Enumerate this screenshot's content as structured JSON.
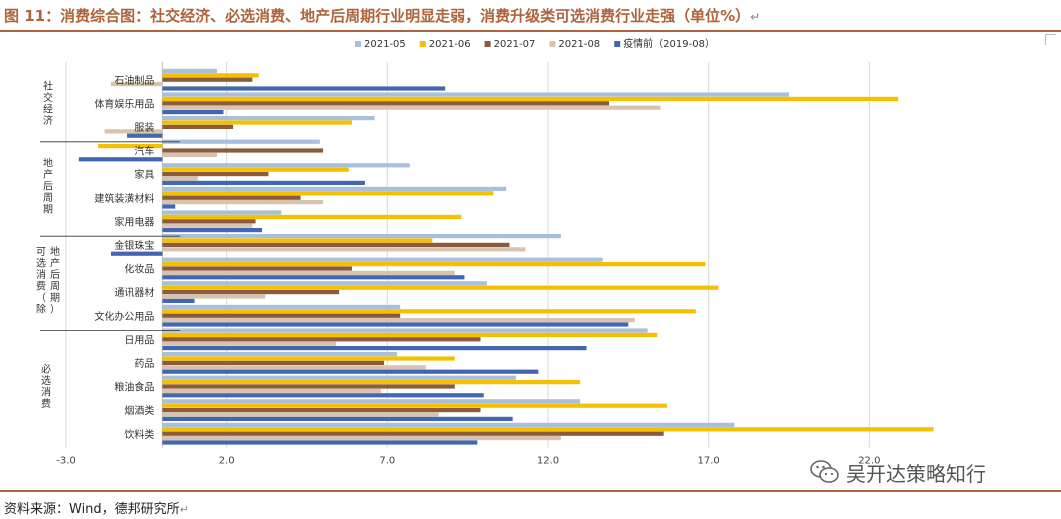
{
  "header": {
    "title": "图 11：消费综合图：社交经济、必选消费、地产后周期行业明显走弱，消费升级类可选消费行业走强（单位%）",
    "return_mark": "↵"
  },
  "footer": {
    "source": "资料来源：Wind，德邦研究所",
    "return_mark": "↵"
  },
  "watermark": {
    "text": "吴开达策略知行",
    "icon": "wechat-icon"
  },
  "colors": {
    "title": "#b0633a",
    "rule": "#b0633a"
  },
  "chart_data": {
    "type": "bar",
    "orientation": "horizontal",
    "categories": [
      "石油制品",
      "体育娱乐用品",
      "服装",
      "汽车",
      "家具",
      "建筑装潢材料",
      "家用电器",
      "金银珠宝",
      "化妆品",
      "通讯器材",
      "文化办公用品",
      "日用品",
      "药品",
      "粮油食品",
      "烟酒类",
      "饮料类"
    ],
    "groups": [
      {
        "label": "社交经济",
        "categories": [
          "石油制品",
          "体育娱乐用品",
          "服装"
        ]
      },
      {
        "label": "地产后周期",
        "categories": [
          "汽车",
          "家具",
          "建筑装潢材料",
          "家用电器"
        ]
      },
      {
        "label": "可选消费（除地产后周期）",
        "categories": [
          "金银珠宝",
          "化妆品",
          "通讯器材",
          "文化办公用品"
        ]
      },
      {
        "label": "必选消费",
        "categories": [
          "日用品",
          "药品",
          "粮油食品",
          "烟酒类",
          "饮料类"
        ]
      }
    ],
    "series": [
      {
        "name": "2021-05",
        "color": "#a9bfde",
        "values": [
          1.7,
          19.5,
          6.6,
          4.9,
          7.7,
          10.7,
          3.7,
          12.4,
          13.7,
          10.1,
          7.4,
          15.1,
          7.3,
          11.0,
          13.0,
          17.8
        ]
      },
      {
        "name": "2021-06",
        "color": "#f5c000",
        "values": [
          3.0,
          22.9,
          5.9,
          -2.0,
          5.8,
          10.3,
          9.3,
          8.4,
          16.9,
          17.3,
          16.6,
          15.4,
          9.1,
          13.0,
          15.7,
          24.0
        ]
      },
      {
        "name": "2021-07",
        "color": "#8c5a3c",
        "values": [
          2.8,
          13.9,
          2.2,
          5.0,
          3.3,
          4.3,
          2.9,
          10.8,
          5.9,
          5.5,
          7.4,
          9.9,
          6.9,
          9.1,
          9.9,
          15.6
        ]
      },
      {
        "name": "2021-08",
        "color": "#d8c4ae",
        "values": [
          -1.6,
          15.5,
          -1.8,
          1.7,
          1.1,
          5.0,
          2.8,
          11.3,
          9.1,
          3.2,
          14.7,
          5.4,
          8.2,
          6.8,
          8.6,
          12.4
        ]
      },
      {
        "name": "疫情前（2019-08）",
        "color": "#4266b1",
        "values": [
          8.8,
          1.9,
          -1.1,
          -2.6,
          6.3,
          0.4,
          3.1,
          -1.6,
          9.4,
          1.0,
          14.5,
          13.2,
          11.7,
          10.0,
          10.9,
          9.8
        ]
      }
    ],
    "x_ticks": [
      -3.0,
      2.0,
      7.0,
      12.0,
      17.0,
      22.0
    ],
    "xlim": [
      -3.0,
      27.0
    ],
    "grid": "vertical",
    "legend_position": "top"
  }
}
